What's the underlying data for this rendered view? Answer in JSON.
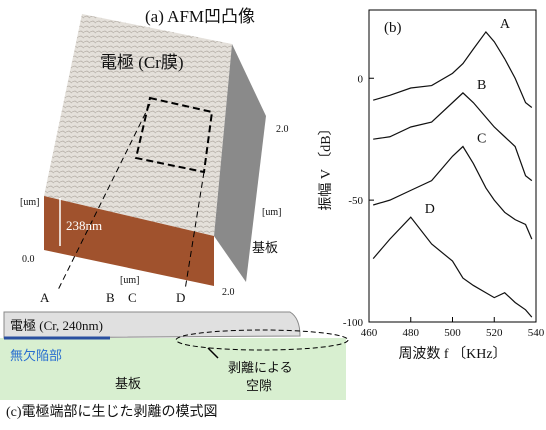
{
  "panel_a": {
    "title": "(a) AFM凹凸像",
    "electrode": "電極 (Cr膜)",
    "height": "238nm",
    "substrate": "基板",
    "unit": "[um]",
    "tick_zero": "0.0",
    "tick_two": "2.0",
    "section_marks": [
      "A",
      "B",
      "C",
      "D"
    ]
  },
  "panel_c": {
    "electrode": "電極 (Cr, 240nm)",
    "defect_free": "無欠陥部",
    "substrate": "基板",
    "gap_lines": [
      "剥離による",
      "空隙"
    ],
    "caption": "(c)電極端部に生じた剥離の模式図"
  },
  "chart_data": {
    "type": "line",
    "title": "(b)",
    "x_label": "周波数 f 〔KHz〕",
    "y_label": "振幅 V 〔dB〕",
    "x": [
      462,
      470,
      480,
      490,
      500,
      505,
      510,
      516,
      520,
      525,
      530,
      535,
      538
    ],
    "series": [
      {
        "name": "A",
        "color": "#111111",
        "values": [
          -9,
          -7,
          -4,
          -3,
          2,
          6,
          12,
          19,
          15,
          8,
          0,
          -10,
          -12
        ]
      },
      {
        "name": "B",
        "color": "#111111",
        "values": [
          -25,
          -24,
          -20,
          -18,
          -10,
          -6,
          -10,
          -16,
          -20,
          -24,
          -28,
          -40,
          -42
        ]
      },
      {
        "name": "C",
        "color": "#111111",
        "values": [
          -52,
          -50,
          -46,
          -42,
          -32,
          -28,
          -35,
          -45,
          -50,
          -55,
          -58,
          -60,
          -66
        ]
      },
      {
        "name": "D",
        "color": "#111111",
        "values": [
          -74,
          -66,
          -57,
          -68,
          -75,
          -82,
          -85,
          -88,
          -90,
          -88,
          -92,
          -95,
          -98
        ]
      }
    ],
    "xlim": [
      460,
      540
    ],
    "xticks": [
      460,
      480,
      500,
      520,
      540
    ],
    "ylim": [
      -100,
      28
    ],
    "yticks": [
      0,
      -50,
      -100
    ]
  }
}
